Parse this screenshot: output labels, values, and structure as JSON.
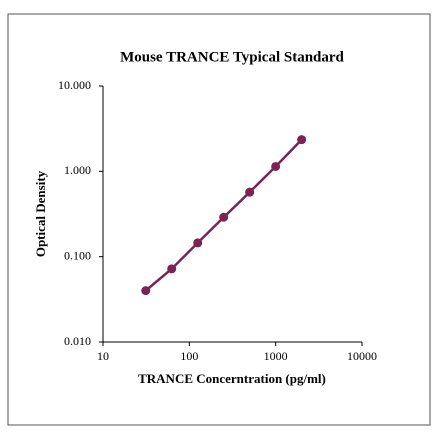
{
  "chart_data": {
    "type": "scatter",
    "title": "Mouse TRANCE Typical Standard",
    "x_label": "TRANCE Concerntration (pg/ml)",
    "y_label": "Optical Density",
    "log_x": true,
    "log_y": true,
    "xlim": [
      10,
      10000
    ],
    "xticks": [
      10,
      100,
      1000,
      10000
    ],
    "ylim": [
      0.01,
      10
    ],
    "yticks": [
      {
        "value": 0.01,
        "label": "0.010"
      },
      {
        "value": 0.1,
        "label": "0.100"
      },
      {
        "value": 1,
        "label": "1.000"
      },
      {
        "value": 10,
        "label": "10.000"
      }
    ],
    "series": [
      {
        "color": "#7b2452",
        "x": [
          31.25,
          62.5,
          125,
          250,
          500,
          1000,
          2000
        ],
        "values": [
          0.04,
          0.072,
          0.145,
          0.29,
          0.57,
          1.14,
          2.35
        ]
      }
    ]
  }
}
